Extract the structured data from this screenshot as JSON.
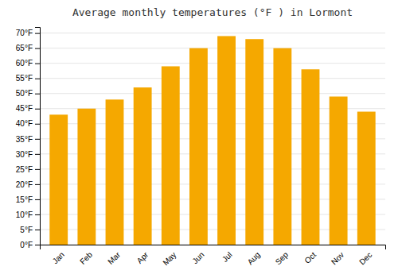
{
  "chart_data": {
    "type": "bar",
    "title": "Average monthly temperatures (°F ) in Lormont",
    "categories": [
      "Jan",
      "Feb",
      "Mar",
      "Apr",
      "May",
      "Jun",
      "Jul",
      "Aug",
      "Sep",
      "Oct",
      "Nov",
      "Dec"
    ],
    "values": [
      43,
      45,
      48,
      52,
      59,
      65,
      69,
      68,
      65,
      58,
      49,
      44
    ],
    "color": "#F5A800",
    "ylim": [
      0,
      72
    ],
    "yticks": [
      {
        "value": 0,
        "label": "0°F"
      },
      {
        "value": 5,
        "label": "5°F"
      },
      {
        "value": 10,
        "label": "10°F"
      },
      {
        "value": 15,
        "label": "15°F"
      },
      {
        "value": 20,
        "label": "20°F"
      },
      {
        "value": 25,
        "label": "25°F"
      },
      {
        "value": 30,
        "label": "30°F"
      },
      {
        "value": 35,
        "label": "35°F"
      },
      {
        "value": 40,
        "label": "40°F"
      },
      {
        "value": 45,
        "label": "45°F"
      },
      {
        "value": 50,
        "label": "50°F"
      },
      {
        "value": 55,
        "label": "55°F"
      },
      {
        "value": 60,
        "label": "60°F"
      },
      {
        "value": 65,
        "label": "65°F"
      },
      {
        "value": 70,
        "label": "70°F"
      }
    ],
    "grid": true
  }
}
